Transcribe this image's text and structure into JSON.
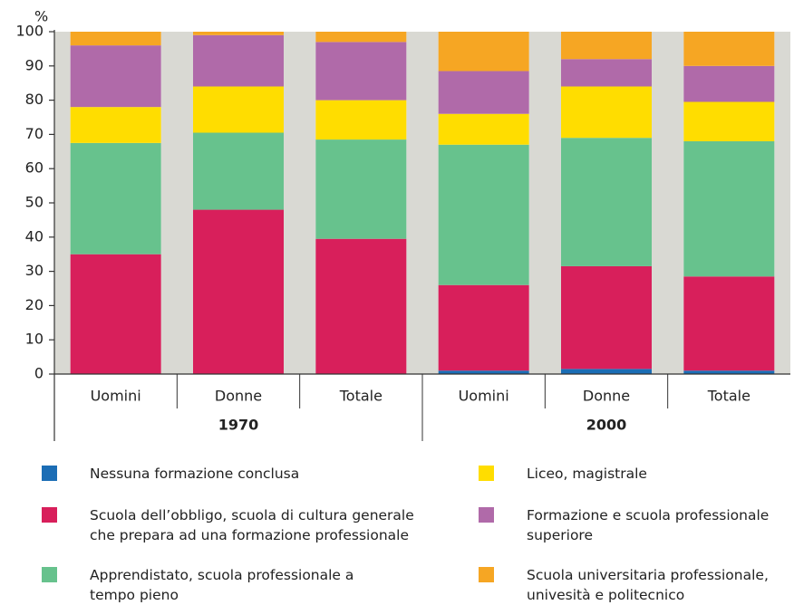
{
  "chart_data": {
    "type": "stacked-bar",
    "y_label": "%",
    "categories": [
      "Uomini",
      "Donne",
      "Totale",
      "Uomini",
      "Donne",
      "Totale"
    ],
    "groups": [
      "1970",
      "2000"
    ],
    "ylim": [
      0,
      100
    ],
    "yticks": [
      0,
      10,
      20,
      30,
      40,
      50,
      60,
      70,
      80,
      90,
      100
    ],
    "series": [
      {
        "name": "Nessuna formazione conclusa",
        "color": "#1b6db5",
        "values": [
          0,
          0,
          0,
          1,
          1.5,
          1
        ]
      },
      {
        "name": "Scuola dell’obbligo, scuola di cultura generale che prepara ad una formazione professionale",
        "color": "#d81f5b",
        "values": [
          35,
          48,
          39.5,
          25,
          30,
          27.5
        ]
      },
      {
        "name": "Apprendistato, scuola professionale a tempo pieno",
        "color": "#67c28d",
        "values": [
          32.5,
          22.5,
          29,
          41,
          37.5,
          39.5
        ]
      },
      {
        "name": "Liceo, magistrale",
        "color": "#ffdd00",
        "values": [
          10.5,
          13.5,
          11.5,
          9,
          15,
          11.5
        ]
      },
      {
        "name": "Formazione e scuola professionale superiore",
        "color": "#b06aa9",
        "values": [
          18,
          15,
          17,
          12.5,
          8,
          10.5
        ]
      },
      {
        "name": "Scuola universitaria professionale, univesità e politecnico",
        "color": "#f6a623",
        "values": [
          4,
          1,
          3,
          11.5,
          8,
          10
        ]
      }
    ]
  }
}
